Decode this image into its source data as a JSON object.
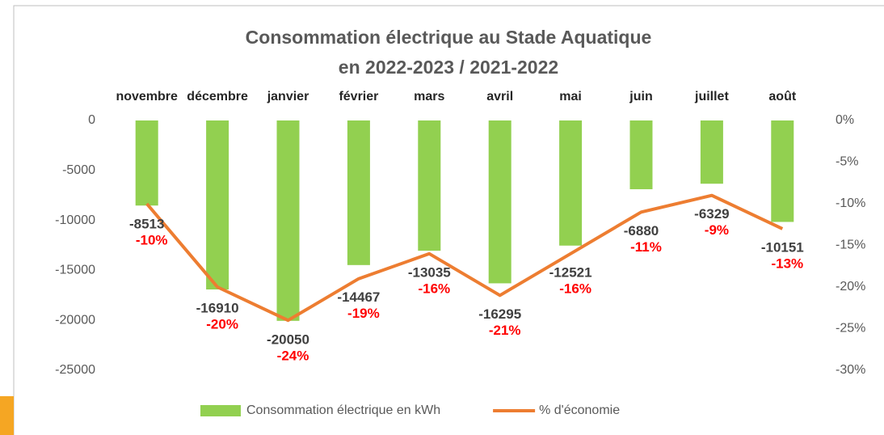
{
  "chart_data": {
    "type": "combo",
    "title": "Consommation électrique au Stade Aquatique",
    "subtitle": "en 2022-2023 / 2021-2022",
    "categories": [
      "novembre",
      "décembre",
      "janvier",
      "février",
      "mars",
      "avril",
      "mai",
      "juin",
      "juillet",
      "août"
    ],
    "series": [
      {
        "name": "Consommation électrique en kWh",
        "type": "bar",
        "color": "#92d050",
        "values": [
          -8513,
          -16910,
          -20050,
          -14467,
          -13035,
          -16295,
          -12521,
          -6880,
          -6329,
          -10151
        ]
      },
      {
        "name": "% d'économie",
        "type": "line",
        "axis": "y2",
        "color": "#ed7d31",
        "values": [
          -10,
          -20,
          -24,
          -19,
          -16,
          -21,
          -16,
          -11,
          -9,
          -13
        ],
        "value_labels": [
          "-10%",
          "-20%",
          "-24%",
          "-19%",
          "-16%",
          "-21%",
          "-16%",
          "-11%",
          "-9%",
          "-13%"
        ]
      }
    ],
    "ylim": [
      -25000,
      0
    ],
    "yticks": [
      0,
      -5000,
      -10000,
      -15000,
      -20000,
      -25000
    ],
    "y2lim": [
      -30,
      0
    ],
    "y2ticks": [
      {
        "value": 0,
        "label": "0%"
      },
      {
        "value": -5,
        "label": "-5%"
      },
      {
        "value": -10,
        "label": "-10%"
      },
      {
        "value": -15,
        "label": "-15%"
      },
      {
        "value": -20,
        "label": "-20%"
      },
      {
        "value": -25,
        "label": "-25%"
      },
      {
        "value": -30,
        "label": "-30%"
      }
    ],
    "grid": false,
    "legend": "bottom"
  }
}
